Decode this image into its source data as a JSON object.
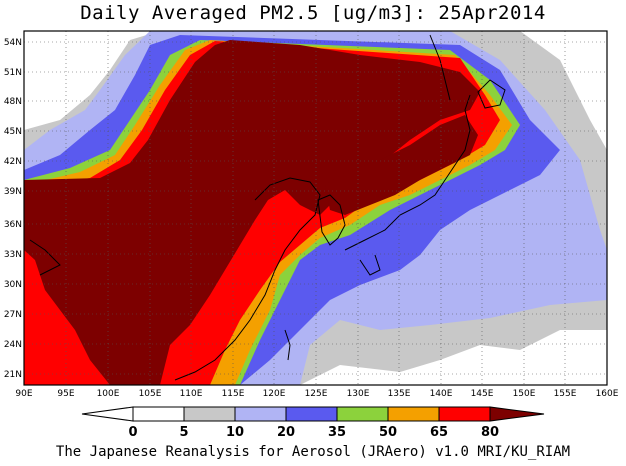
{
  "title": "Daily Averaged PM2.5 [ug/m3]: 25Apr2014",
  "footer": "The Japanese Reanalysis for Aerosol (JRAero) v1.0 MRI/KU_RIAM",
  "lat_labels": [
    "54N",
    "51N",
    "48N",
    "45N",
    "42N",
    "39N",
    "36N",
    "33N",
    "30N",
    "27N",
    "24N",
    "21N"
  ],
  "lon_labels": [
    "90E",
    "95E",
    "100E",
    "105E",
    "110E",
    "115E",
    "120E",
    "125E",
    "130E",
    "135E",
    "140E",
    "145E",
    "150E",
    "155E",
    "160E"
  ],
  "colorbar": {
    "bins": [
      {
        "color": "#ffffff"
      },
      {
        "color": "#c8c8c8"
      },
      {
        "color": "#b0b4f4"
      },
      {
        "color": "#5a5aef"
      },
      {
        "color": "#8cd23c"
      },
      {
        "color": "#f4a000"
      },
      {
        "color": "#ff0000"
      },
      {
        "color": "#7d0000"
      }
    ],
    "tick_labels": [
      "0",
      "5",
      "10",
      "20",
      "35",
      "50",
      "65",
      "80"
    ]
  }
}
